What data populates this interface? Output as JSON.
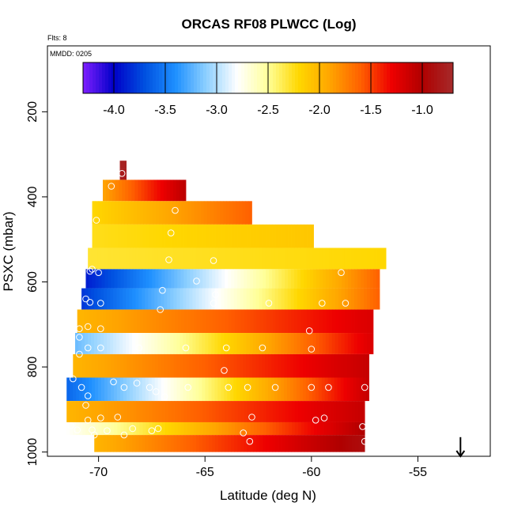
{
  "chart_data": {
    "type": "heatmap",
    "title": "ORCAS RF08 PLWCC (Log)",
    "flights_label": "Flts: 8",
    "date_label": "MMDD: 0205",
    "xlabel": "Latitude (deg N)",
    "ylabel": "PSXC (mbar)",
    "xlim": [
      -72.4,
      -51.6
    ],
    "ylim": [
      1010,
      45
    ],
    "x_ticks": [
      -70,
      -65,
      -60,
      -55
    ],
    "x_tick_labels": [
      "-70",
      "-65",
      "-60",
      "-55"
    ],
    "y_ticks": [
      200,
      400,
      600,
      800,
      1000
    ],
    "y_tick_labels": [
      "200",
      "400",
      "600",
      "800",
      "1000"
    ],
    "colorbar": {
      "range": [
        -4.3,
        -0.7
      ],
      "ticks": [
        -4.0,
        -3.5,
        -3.0,
        -2.5,
        -2.0,
        -1.5,
        -1.0
      ],
      "tick_labels": [
        "-4.0",
        "-3.5",
        "-3.0",
        "-2.5",
        "-2.0",
        "-1.5",
        "-1.0"
      ],
      "colors": [
        "#7f1fff",
        "#0000c8",
        "#0050e0",
        "#1e90ff",
        "#8ed0ff",
        "#ffffff",
        "#ffff99",
        "#ffd700",
        "#ffa500",
        "#ff6000",
        "#ee0000",
        "#b00000",
        "#a52a2a"
      ]
    },
    "layers": [
      {
        "p_top": 315,
        "p_bot": 335,
        "x0": -69.0,
        "x1": -68.7,
        "v_start": -0.75,
        "v_end": -0.75
      },
      {
        "p_top": 335,
        "p_bot": 360,
        "x0": -69.0,
        "x1": -68.7,
        "v_start": -0.8,
        "v_end": -0.8
      },
      {
        "p_top": 360,
        "p_bot": 410,
        "x0": -69.8,
        "x1": -65.9,
        "v_start": -1.9,
        "v_end": -1.05
      },
      {
        "p_top": 410,
        "p_bot": 465,
        "x0": -70.3,
        "x1": -62.8,
        "v_start": -2.2,
        "v_end": -1.6
      },
      {
        "p_top": 465,
        "p_bot": 520,
        "x0": -70.3,
        "x1": -59.9,
        "v_start": -2.25,
        "v_end": -2.1
      },
      {
        "p_top": 520,
        "p_bot": 570,
        "x0": -70.5,
        "x1": -56.5,
        "v_start": -2.3,
        "v_end": -2.2
      },
      {
        "p_top": 570,
        "p_bot": 615,
        "x0": -70.6,
        "x1": -56.8,
        "v_start": -3.9,
        "v_end": -1.6
      },
      {
        "p_top": 615,
        "p_bot": 665,
        "x0": -70.8,
        "x1": -56.8,
        "v_start": -3.8,
        "v_end": -1.6
      },
      {
        "p_top": 665,
        "p_bot": 720,
        "x0": -71.0,
        "x1": -57.1,
        "v_start": -2.0,
        "v_end": -1.2
      },
      {
        "p_top": 720,
        "p_bot": 770,
        "x0": -71.1,
        "x1": -57.1,
        "v_start": -3.2,
        "v_end": -1.2
      },
      {
        "p_top": 770,
        "p_bot": 825,
        "x0": -71.2,
        "x1": -57.3,
        "v_start": -2.0,
        "v_end": -1.1
      },
      {
        "p_top": 825,
        "p_bot": 880,
        "x0": -71.5,
        "x1": -57.3,
        "v_start": -3.6,
        "v_end": -1.1
      },
      {
        "p_top": 880,
        "p_bot": 930,
        "x0": -71.5,
        "x1": -57.5,
        "v_start": -2.0,
        "v_end": -1.1
      },
      {
        "p_top": 930,
        "p_bot": 960,
        "x0": -71.5,
        "x1": -57.5,
        "v_start": -2.8,
        "v_end": -1.0
      },
      {
        "p_top": 960,
        "p_bot": 1000,
        "x0": -70.2,
        "x1": -57.5,
        "v_start": -2.0,
        "v_end": -0.9
      }
    ],
    "points": [
      {
        "lat": -68.9,
        "p": 345
      },
      {
        "lat": -69.4,
        "p": 375
      },
      {
        "lat": -66.4,
        "p": 432
      },
      {
        "lat": -66.6,
        "p": 485
      },
      {
        "lat": -70.1,
        "p": 455
      },
      {
        "lat": -66.7,
        "p": 548
      },
      {
        "lat": -64.6,
        "p": 550
      },
      {
        "lat": -70.3,
        "p": 570
      },
      {
        "lat": -70.4,
        "p": 575
      },
      {
        "lat": -70.0,
        "p": 578
      },
      {
        "lat": -65.4,
        "p": 598
      },
      {
        "lat": -58.6,
        "p": 578
      },
      {
        "lat": -67.0,
        "p": 620
      },
      {
        "lat": -64.5,
        "p": 630
      },
      {
        "lat": -70.6,
        "p": 640
      },
      {
        "lat": -70.4,
        "p": 648
      },
      {
        "lat": -69.9,
        "p": 650
      },
      {
        "lat": -64.6,
        "p": 650
      },
      {
        "lat": -62.0,
        "p": 650
      },
      {
        "lat": -59.5,
        "p": 650
      },
      {
        "lat": -58.4,
        "p": 650
      },
      {
        "lat": -67.1,
        "p": 665
      },
      {
        "lat": -70.5,
        "p": 705
      },
      {
        "lat": -70.9,
        "p": 710
      },
      {
        "lat": -69.9,
        "p": 710
      },
      {
        "lat": -60.1,
        "p": 715
      },
      {
        "lat": -70.9,
        "p": 730
      },
      {
        "lat": -70.5,
        "p": 755
      },
      {
        "lat": -69.9,
        "p": 755
      },
      {
        "lat": -68.1,
        "p": 755
      },
      {
        "lat": -65.9,
        "p": 755
      },
      {
        "lat": -64.0,
        "p": 755
      },
      {
        "lat": -62.3,
        "p": 755
      },
      {
        "lat": -60.0,
        "p": 758
      },
      {
        "lat": -70.9,
        "p": 770
      },
      {
        "lat": -64.1,
        "p": 808
      },
      {
        "lat": -71.2,
        "p": 828
      },
      {
        "lat": -69.3,
        "p": 835
      },
      {
        "lat": -68.2,
        "p": 838
      },
      {
        "lat": -68.8,
        "p": 848
      },
      {
        "lat": -67.6,
        "p": 848
      },
      {
        "lat": -67.3,
        "p": 858
      },
      {
        "lat": -65.8,
        "p": 848
      },
      {
        "lat": -63.9,
        "p": 848
      },
      {
        "lat": -63.0,
        "p": 848
      },
      {
        "lat": -61.7,
        "p": 848
      },
      {
        "lat": -60.0,
        "p": 848
      },
      {
        "lat": -59.2,
        "p": 848
      },
      {
        "lat": -57.5,
        "p": 848
      },
      {
        "lat": -70.8,
        "p": 848
      },
      {
        "lat": -70.5,
        "p": 868
      },
      {
        "lat": -66.9,
        "p": 870
      },
      {
        "lat": -70.6,
        "p": 890
      },
      {
        "lat": -69.9,
        "p": 920
      },
      {
        "lat": -69.1,
        "p": 918
      },
      {
        "lat": -70.5,
        "p": 925
      },
      {
        "lat": -62.8,
        "p": 918
      },
      {
        "lat": -59.4,
        "p": 920
      },
      {
        "lat": -59.8,
        "p": 925
      },
      {
        "lat": -71.3,
        "p": 938
      },
      {
        "lat": -71.0,
        "p": 948
      },
      {
        "lat": -70.3,
        "p": 948
      },
      {
        "lat": -69.6,
        "p": 950
      },
      {
        "lat": -68.4,
        "p": 945
      },
      {
        "lat": -67.5,
        "p": 950
      },
      {
        "lat": -67.2,
        "p": 945
      },
      {
        "lat": -68.8,
        "p": 960
      },
      {
        "lat": -63.2,
        "p": 955
      },
      {
        "lat": -62.9,
        "p": 975
      },
      {
        "lat": -57.6,
        "p": 940
      },
      {
        "lat": -57.5,
        "p": 975
      },
      {
        "lat": -70.2,
        "p": 960
      }
    ],
    "arrow": {
      "lat": -53.0,
      "p_from": 965,
      "p_to": 1010
    }
  }
}
